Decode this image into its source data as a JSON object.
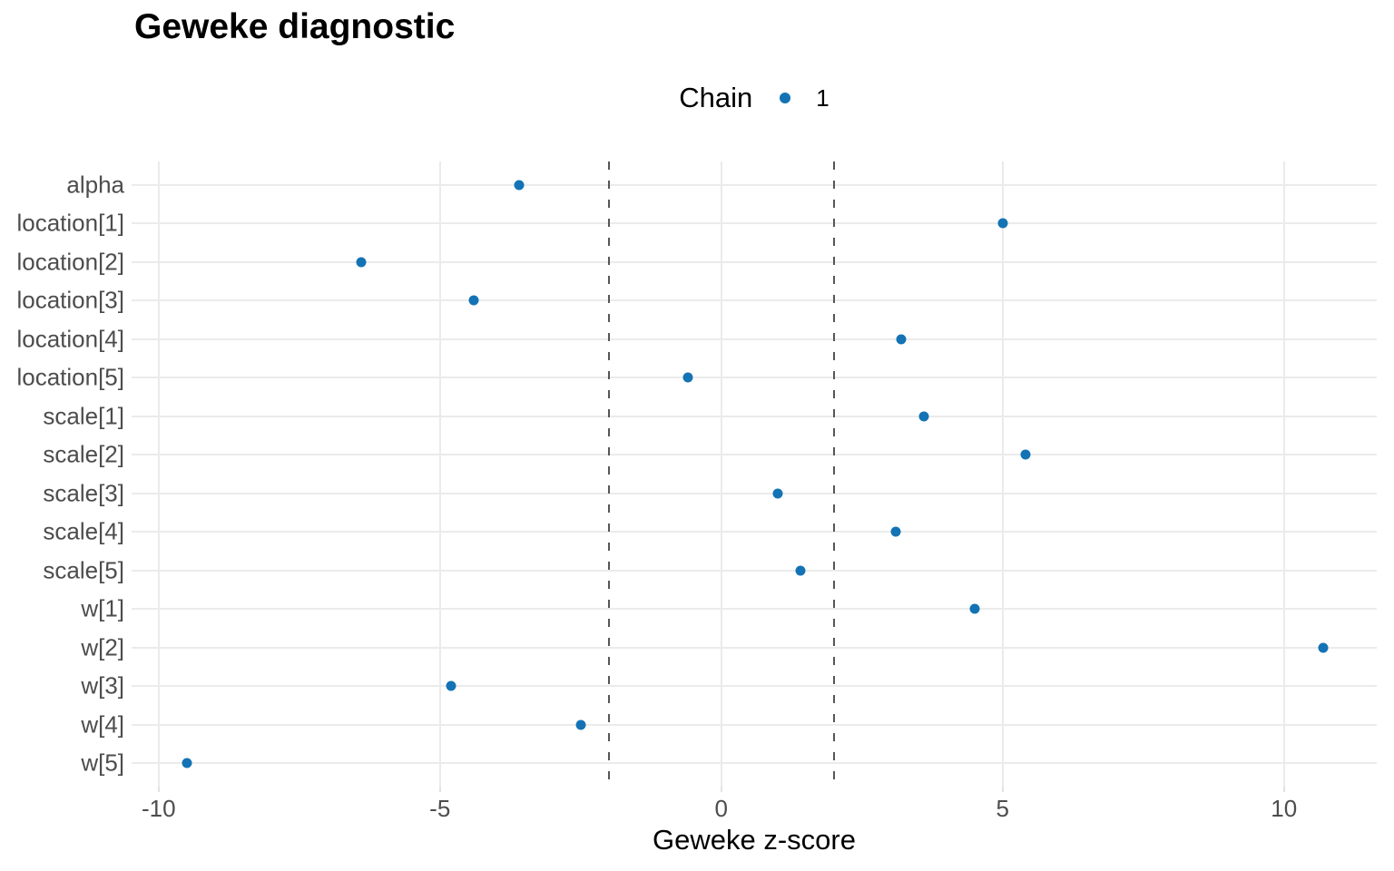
{
  "title": "Geweke diagnostic",
  "legend": {
    "title": "Chain",
    "items": [
      {
        "label": "1",
        "color": "#1373b4"
      }
    ]
  },
  "colors": {
    "background": "#ffffff",
    "point": "#1373b4",
    "gridline": "#ebebeb",
    "reference_line": "#565656",
    "axis_text": "#4d4d4d",
    "title_text": "#000000"
  },
  "chart_data": {
    "type": "scatter",
    "subtype": "horizontal-dot-plot",
    "title": "Geweke diagnostic",
    "xlabel": "Geweke z-score",
    "ylabel": "",
    "legend_position": "top-center",
    "grid": "major-only",
    "categories": [
      "alpha",
      "location[1]",
      "location[2]",
      "location[3]",
      "location[4]",
      "location[5]",
      "scale[1]",
      "scale[2]",
      "scale[3]",
      "scale[4]",
      "scale[5]",
      "w[1]",
      "w[2]",
      "w[3]",
      "w[4]",
      "w[5]"
    ],
    "series": [
      {
        "name": "1",
        "color": "#1373b4",
        "values": [
          -3.6,
          5.0,
          -6.4,
          -4.4,
          3.2,
          -0.6,
          3.6,
          5.4,
          1.0,
          3.1,
          1.4,
          4.5,
          10.7,
          -4.8,
          -2.5,
          -9.5
        ]
      }
    ],
    "x_ticks": [
      -10,
      -5,
      0,
      5,
      10
    ],
    "xlim": [
      -10.48,
      11.65
    ],
    "reference_lines_x": [
      -2,
      2
    ]
  }
}
